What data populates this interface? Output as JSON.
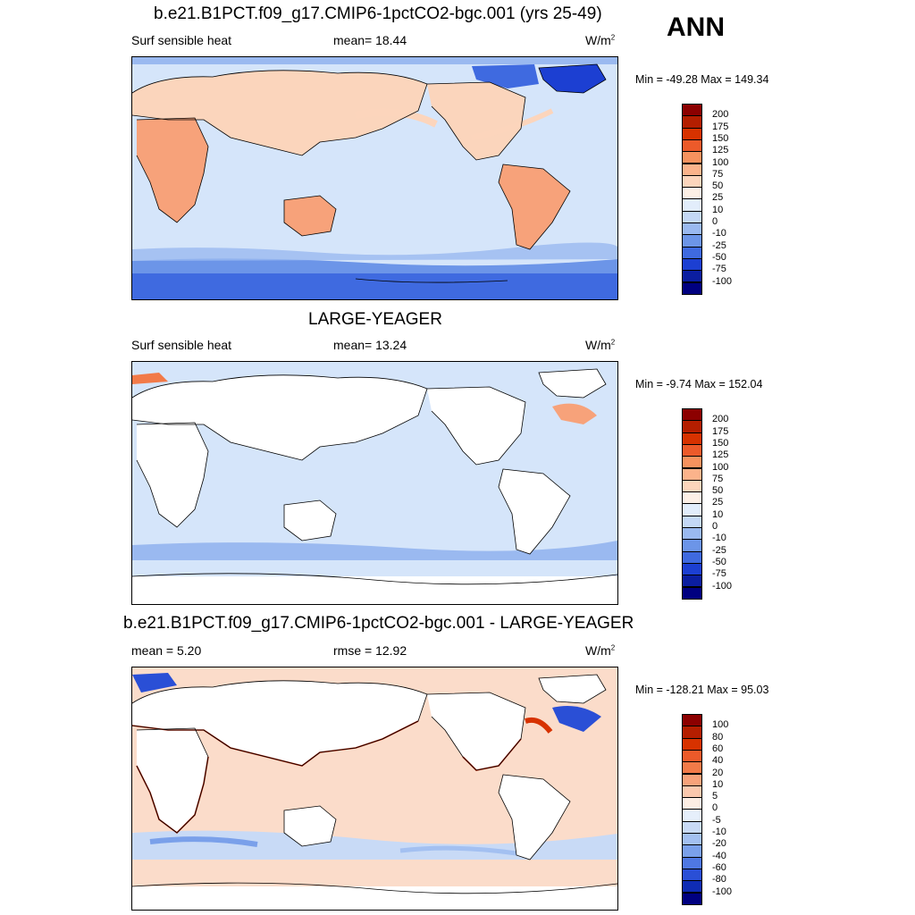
{
  "season": "ANN",
  "panels": [
    {
      "title": "b.e21.B1PCT.f09_g17.CMIP6-1pctCO2-bgc.001 (yrs 25-49)",
      "left_label": "Surf sensible heat",
      "mid_label": "mean=  18.44",
      "units": "W/m",
      "units_sup": "2",
      "minmax": "Min = -49.28 Max = 149.34",
      "levels": [
        "200",
        "175",
        "150",
        "125",
        "100",
        "75",
        "50",
        "25",
        "10",
        "0",
        "-10",
        "-25",
        "-50",
        "-75",
        "-100"
      ],
      "colors": [
        "#8c0000",
        "#b41e00",
        "#d73200",
        "#ec5a2a",
        "#f7925e",
        "#fbb38b",
        "#fcd5bc",
        "#fdf0e6",
        "#e2edfb",
        "#c4d8f6",
        "#9ab9f0",
        "#6c95e8",
        "#3f6ae0",
        "#1c3fd2",
        "#0b1ea0",
        "#000080"
      ]
    },
    {
      "title": "LARGE-YEAGER",
      "left_label": "Surf sensible heat",
      "mid_label": "mean=  13.24",
      "units": "W/m",
      "units_sup": "2",
      "minmax": "Min =  -9.74 Max = 152.04",
      "levels": [
        "200",
        "175",
        "150",
        "125",
        "100",
        "75",
        "50",
        "25",
        "10",
        "0",
        "-10",
        "-25",
        "-50",
        "-75",
        "-100"
      ],
      "colors": [
        "#8c0000",
        "#b41e00",
        "#d73200",
        "#ec5a2a",
        "#f7925e",
        "#fbb38b",
        "#fcd5bc",
        "#fdf0e6",
        "#e2edfb",
        "#c4d8f6",
        "#9ab9f0",
        "#6c95e8",
        "#3f6ae0",
        "#1c3fd2",
        "#0b1ea0",
        "#000080"
      ]
    },
    {
      "title": "b.e21.B1PCT.f09_g17.CMIP6-1pctCO2-bgc.001 - LARGE-YEAGER",
      "left_label": "mean =   5.20",
      "mid_label": "rmse =  12.92",
      "units": "W/m",
      "units_sup": "2",
      "minmax": "Min = -128.21 Max =  95.03",
      "levels": [
        "100",
        "80",
        "60",
        "40",
        "20",
        "10",
        "5",
        "0",
        "-5",
        "-10",
        "-20",
        "-40",
        "-60",
        "-80",
        "-100"
      ],
      "colors": [
        "#8c0000",
        "#b41e00",
        "#d73200",
        "#ec5a2a",
        "#f27a48",
        "#f7a27a",
        "#fbc8ad",
        "#fdeee4",
        "#e6effb",
        "#c8daf6",
        "#a3c0f1",
        "#7aa0ea",
        "#4f78e2",
        "#2a4fd6",
        "#0f2cb4",
        "#000080"
      ]
    }
  ]
}
